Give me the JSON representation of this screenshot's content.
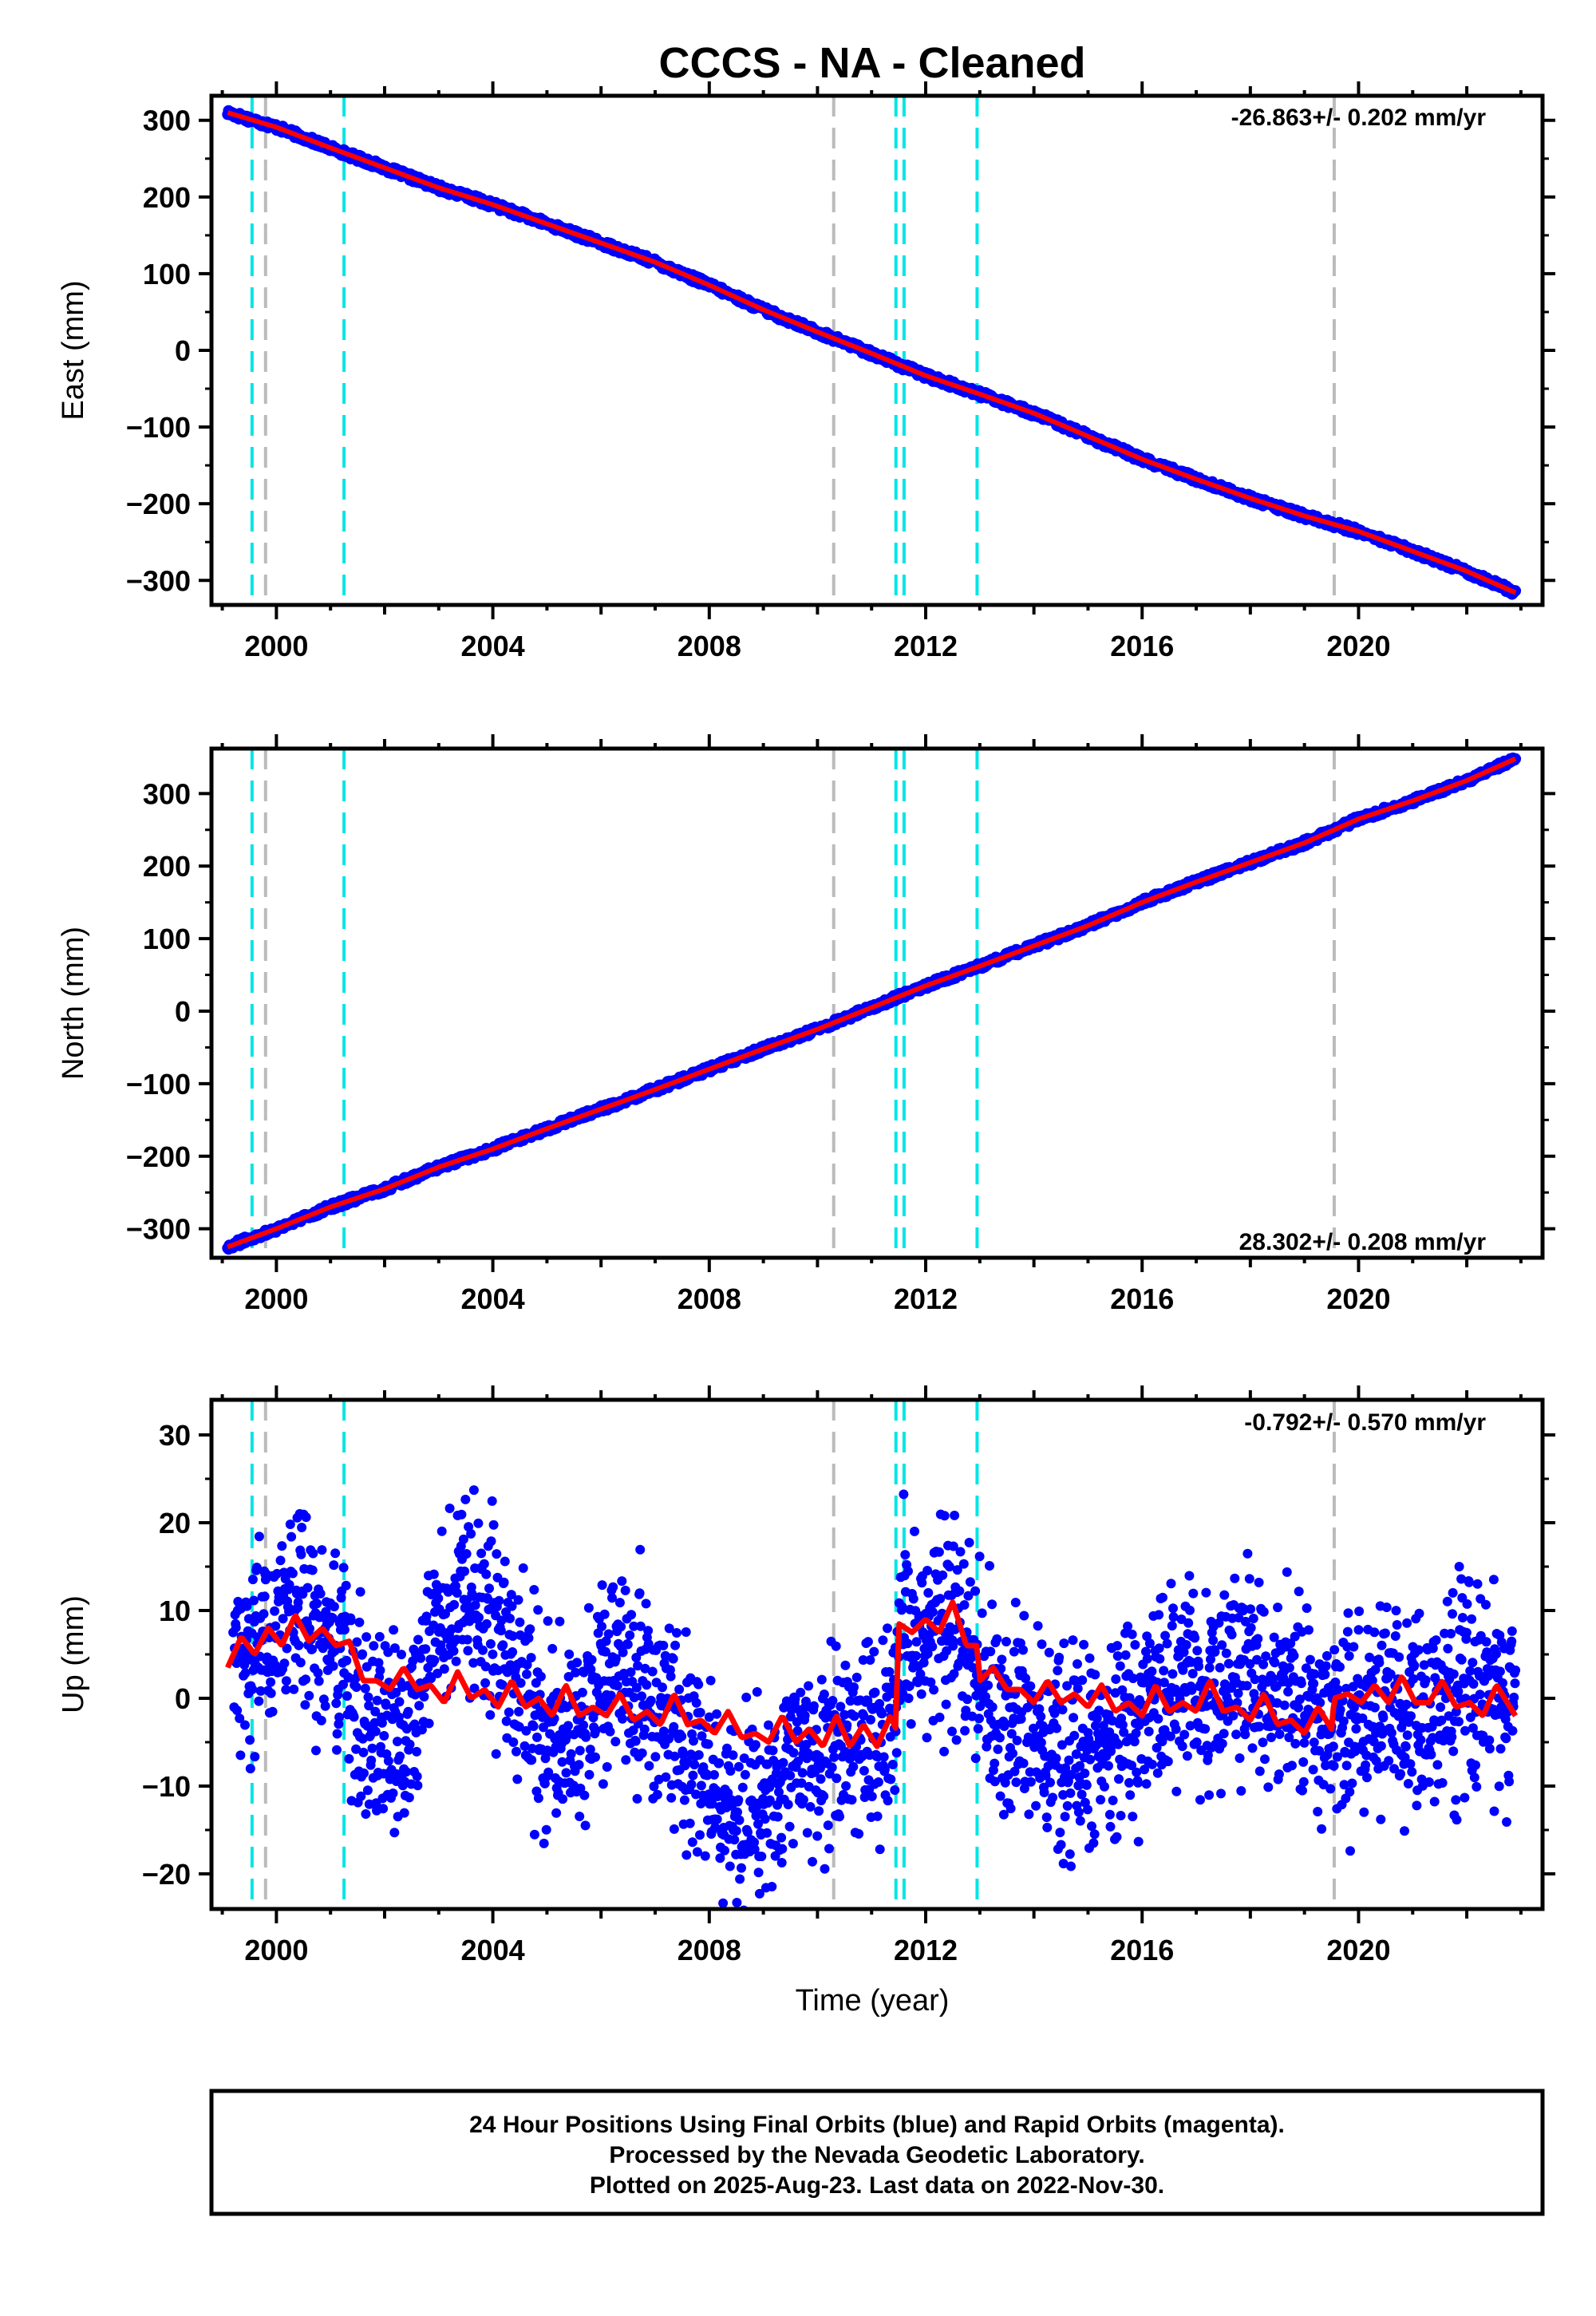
{
  "title": "CCCS  - NA - Cleaned",
  "colors": {
    "final_orbits": "#0000ff",
    "model": "#ff0000",
    "antenna_change": "#00e5e5",
    "equipment_change": "#bbbbbb",
    "frame": "#000000"
  },
  "chart_data": [
    {
      "type": "scatter",
      "ylabel": "East (mm)",
      "xlabel": "",
      "xlim": [
        1998.8,
        2023.4
      ],
      "ylim": [
        -332,
        332
      ],
      "yticks": [
        -300,
        -200,
        -100,
        0,
        100,
        200,
        300
      ],
      "ytick_labels": [
        "−300",
        "−200",
        "−100",
        "0",
        "100",
        "200",
        "300"
      ],
      "xticks": [
        2000,
        2004,
        2008,
        2012,
        2016,
        2020
      ],
      "xtick_labels": [
        "2000",
        "2004",
        "2008",
        "2012",
        "2016",
        "2020"
      ],
      "rate_text": "-26.863+/- 0.202 mm/yr",
      "rate_position": "top-right",
      "series": [
        {
          "role": "data",
          "x": [
            1999.1,
            2000.0,
            2001.0,
            2002.0,
            2003.0,
            2004.0,
            2005.0,
            2006.0,
            2007.0,
            2008.0,
            2009.0,
            2010.0,
            2011.0,
            2012.0,
            2013.0,
            2014.0,
            2015.0,
            2016.0,
            2017.0,
            2018.0,
            2019.0,
            2020.0,
            2021.0,
            2022.0,
            2022.9
          ],
          "y": [
            310,
            291,
            264,
            238,
            212,
            190,
            165,
            140,
            115,
            85,
            53,
            24,
            -4,
            -33,
            -57,
            -82,
            -112,
            -142,
            -168,
            -193,
            -216,
            -236,
            -262,
            -288,
            -316
          ]
        },
        {
          "role": "model",
          "x": [
            1999.1,
            2000.0,
            2001.0,
            2002.0,
            2003.0,
            2004.0,
            2005.0,
            2006.0,
            2007.0,
            2008.0,
            2009.0,
            2010.0,
            2011.0,
            2012.0,
            2013.0,
            2014.0,
            2015.0,
            2016.0,
            2017.0,
            2018.0,
            2019.0,
            2020.0,
            2021.0,
            2022.0,
            2022.9
          ],
          "y": [
            310,
            291,
            264,
            238,
            212,
            190,
            165,
            140,
            115,
            85,
            53,
            24,
            -4,
            -33,
            -57,
            -82,
            -112,
            -142,
            -168,
            -193,
            -216,
            -236,
            -262,
            -288,
            -316
          ]
        }
      ],
      "events_antenna": [
        1999.55,
        2001.25,
        2011.45,
        2011.6,
        2012.95
      ],
      "events_equipment": [
        1999.8,
        2010.3,
        2019.55
      ]
    },
    {
      "type": "scatter",
      "ylabel": "North (mm)",
      "xlabel": "",
      "xlim": [
        1998.8,
        2023.4
      ],
      "ylim": [
        -340,
        362
      ],
      "yticks": [
        -300,
        -200,
        -100,
        0,
        100,
        200,
        300
      ],
      "ytick_labels": [
        "−300",
        "−200",
        "−100",
        "0",
        "100",
        "200",
        "300"
      ],
      "xticks": [
        2000,
        2004,
        2008,
        2012,
        2016,
        2020
      ],
      "xtick_labels": [
        "2000",
        "2004",
        "2008",
        "2012",
        "2016",
        "2020"
      ],
      "rate_text": "28.302+/- 0.208 mm/yr",
      "rate_position": "bottom-right",
      "series": [
        {
          "role": "data",
          "x": [
            1999.1,
            2000.0,
            2001.0,
            2002.0,
            2003.0,
            2004.0,
            2005.0,
            2006.0,
            2007.0,
            2008.0,
            2009.0,
            2010.0,
            2011.0,
            2012.0,
            2013.0,
            2014.0,
            2015.0,
            2016.0,
            2017.0,
            2018.0,
            2019.0,
            2020.0,
            2021.0,
            2022.0,
            2022.9
          ],
          "y": [
            -325,
            -300,
            -270,
            -245,
            -215,
            -190,
            -162,
            -135,
            -108,
            -80,
            -52,
            -25,
            5,
            35,
            62,
            90,
            118,
            150,
            178,
            205,
            232,
            265,
            290,
            318,
            348
          ]
        },
        {
          "role": "model",
          "x": [
            1999.1,
            2000.0,
            2001.0,
            2002.0,
            2003.0,
            2004.0,
            2005.0,
            2006.0,
            2007.0,
            2008.0,
            2009.0,
            2010.0,
            2011.0,
            2012.0,
            2013.0,
            2014.0,
            2015.0,
            2016.0,
            2017.0,
            2018.0,
            2019.0,
            2020.0,
            2021.0,
            2022.0,
            2022.9
          ],
          "y": [
            -325,
            -300,
            -270,
            -245,
            -215,
            -190,
            -162,
            -135,
            -108,
            -80,
            -52,
            -25,
            5,
            35,
            62,
            90,
            118,
            150,
            178,
            205,
            232,
            265,
            290,
            318,
            348
          ]
        }
      ],
      "events_antenna": [
        1999.55,
        2001.25,
        2011.45,
        2011.6,
        2012.95
      ],
      "events_equipment": [
        1999.8,
        2010.3,
        2019.55
      ]
    },
    {
      "type": "scatter",
      "ylabel": "Up (mm)",
      "xlabel": "Time (year)",
      "xlim": [
        1998.8,
        2023.4
      ],
      "ylim": [
        -24,
        34
      ],
      "yticks": [
        -20,
        -10,
        0,
        10,
        20,
        30
      ],
      "ytick_labels": [
        "−20",
        "−10",
        "0",
        "10",
        "20",
        "30"
      ],
      "xticks": [
        2000,
        2004,
        2008,
        2012,
        2016,
        2020
      ],
      "xtick_labels": [
        "2000",
        "2004",
        "2008",
        "2012",
        "2016",
        "2020"
      ],
      "rate_text": "-0.792+/- 0.570 mm/yr",
      "rate_position": "top-right",
      "series": [
        {
          "role": "data",
          "x": [
            1999.2,
            1999.6,
            2000.0,
            2000.5,
            2001.0,
            2001.5,
            2002.0,
            2002.5,
            2003.0,
            2003.5,
            2004.0,
            2004.5,
            2005.0,
            2005.5,
            2006.0,
            2006.5,
            2007.0,
            2007.5,
            2008.0,
            2008.5,
            2009.0,
            2009.5,
            2010.0,
            2010.5,
            2011.0,
            2011.4,
            2011.6,
            2012.0,
            2012.5,
            2013.0,
            2013.5,
            2014.0,
            2014.5,
            2015.0,
            2015.5,
            2016.0,
            2016.5,
            2017.0,
            2017.5,
            2018.0,
            2018.5,
            2019.0,
            2019.5,
            2020.0,
            2020.5,
            2021.0,
            2021.5,
            2022.0,
            2022.5,
            2022.9
          ],
          "y": [
            6,
            5,
            8,
            10,
            6,
            0,
            -4,
            -2,
            8,
            12,
            8,
            4,
            -6,
            -4,
            2,
            4,
            0,
            -4,
            -10,
            -14,
            -12,
            -8,
            -6,
            -4,
            -4,
            -2,
            10,
            8,
            10,
            2,
            -2,
            -4,
            -6,
            -6,
            -5,
            -2,
            2,
            3,
            2,
            4,
            1,
            -2,
            -3,
            -2,
            0,
            -3,
            -1,
            2,
            2,
            -1
          ]
        },
        {
          "role": "model",
          "x": [
            1999.1,
            1999.35,
            1999.6,
            1999.85,
            2000.1,
            2000.35,
            2000.6,
            2000.85,
            2001.1,
            2001.35,
            2001.6,
            2001.85,
            2002.1,
            2002.35,
            2002.6,
            2002.85,
            2003.1,
            2003.35,
            2003.6,
            2003.85,
            2004.1,
            2004.35,
            2004.6,
            2004.85,
            2005.1,
            2005.35,
            2005.6,
            2005.85,
            2006.1,
            2006.35,
            2006.6,
            2006.85,
            2007.1,
            2007.35,
            2007.6,
            2007.85,
            2008.1,
            2008.35,
            2008.6,
            2008.85,
            2009.1,
            2009.35,
            2009.6,
            2009.85,
            2010.1,
            2010.35,
            2010.6,
            2010.85,
            2011.1,
            2011.35,
            2011.45,
            2011.5,
            2011.75,
            2012.0,
            2012.25,
            2012.5,
            2012.75,
            2012.95,
            2013.0,
            2013.25,
            2013.5,
            2013.75,
            2014.0,
            2014.25,
            2014.5,
            2014.75,
            2015.0,
            2015.25,
            2015.5,
            2015.75,
            2016.0,
            2016.25,
            2016.5,
            2016.75,
            2017.0,
            2017.25,
            2017.5,
            2017.75,
            2018.0,
            2018.25,
            2018.5,
            2018.75,
            2019.0,
            2019.25,
            2019.5,
            2019.55,
            2019.8,
            2020.05,
            2020.3,
            2020.55,
            2020.8,
            2021.05,
            2021.3,
            2021.55,
            2021.8,
            2022.05,
            2022.3,
            2022.55,
            2022.9
          ],
          "y": [
            3.5,
            7,
            5,
            8,
            6,
            9.5,
            6.5,
            8,
            6,
            6.5,
            2,
            2,
            1,
            3.5,
            1,
            1.5,
            -0.5,
            3,
            0,
            1,
            -1,
            2,
            -1,
            0,
            -2,
            1.5,
            -2,
            -1,
            -2,
            0.5,
            -2.5,
            -1.5,
            -3,
            0.5,
            -3,
            -2.5,
            -4,
            -1.5,
            -4.5,
            -4,
            -5,
            -2,
            -5,
            -3.5,
            -5.5,
            -2,
            -5.5,
            -3,
            -5.5,
            -2,
            -3.5,
            8.5,
            7.5,
            9,
            7.5,
            11,
            6,
            6,
            2,
            3.5,
            1,
            1,
            -0.5,
            2,
            -0.5,
            0.5,
            -1,
            1.5,
            -1.5,
            -0.5,
            -2,
            1.5,
            -1.5,
            -0.5,
            -1.5,
            2,
            -1.5,
            -1,
            -2.5,
            0.5,
            -3,
            -2.5,
            -4,
            -1,
            -3.5,
            0,
            0.5,
            -0.5,
            1.5,
            -0.5,
            2.5,
            -0.5,
            -0.5,
            2,
            -1,
            -0.5,
            -2,
            1.5,
            -2
          ]
        }
      ],
      "events_antenna": [
        1999.55,
        2001.25,
        2011.45,
        2011.6,
        2012.95
      ],
      "events_equipment": [
        1999.8,
        2010.3,
        2019.55
      ]
    }
  ],
  "footer": {
    "line1": "24 Hour Positions Using Final Orbits (blue) and Rapid Orbits (magenta).",
    "line2": "Processed by the Nevada Geodetic Laboratory.",
    "line3": "Plotted on 2025-Aug-23. Last data on 2022-Nov-30."
  }
}
